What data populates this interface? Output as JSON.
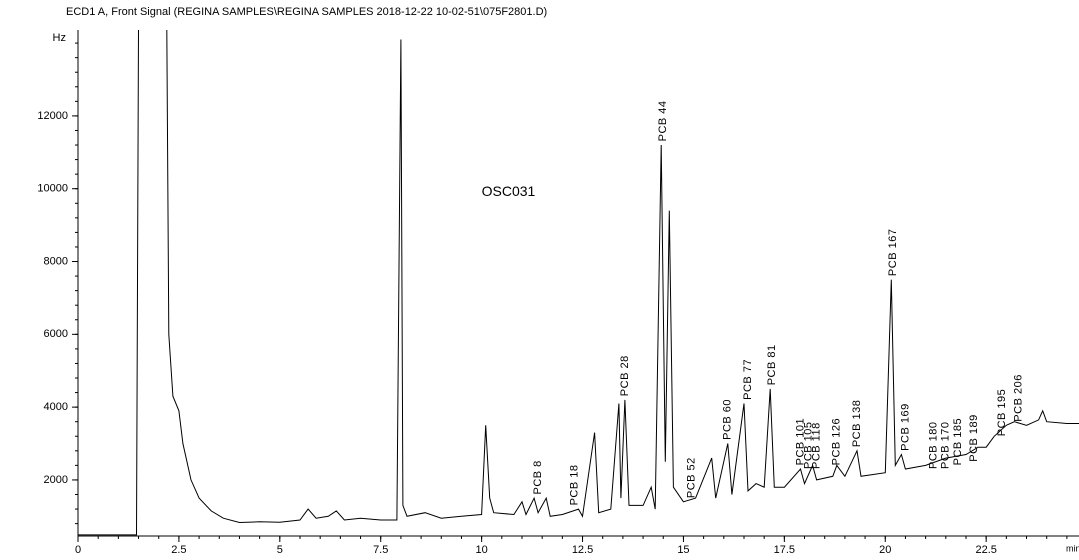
{
  "chart_data": {
    "type": "line",
    "title": "ECD1 A, Front Signal (REGINA SAMPLES\\REGINA SAMPLES 2018-12-22 10-02-51\\075F2801.D)",
    "ylabel": "Hz",
    "xlabel": "min",
    "color": "#000000",
    "xlim": [
      0,
      24.8
    ],
    "ylim": [
      460,
      14360
    ],
    "xticks": [
      0,
      2.5,
      5,
      7.5,
      10,
      12.5,
      15,
      17.5,
      20,
      22.5
    ],
    "yticks": [
      2000,
      4000,
      6000,
      8000,
      10000,
      12000
    ],
    "x": [
      0,
      1.45,
      1.5,
      2.2,
      2.25,
      2.35,
      2.5,
      2.6,
      2.8,
      3.0,
      3.3,
      3.6,
      4.0,
      4.5,
      5.0,
      5.5,
      5.7,
      5.9,
      6.2,
      6.4,
      6.6,
      7.0,
      7.5,
      7.9,
      8.0,
      8.05,
      8.15,
      8.6,
      9.0,
      9.5,
      10.0,
      10.1,
      10.2,
      10.3,
      10.8,
      11.0,
      11.1,
      11.3,
      11.4,
      11.6,
      11.7,
      12.0,
      12.4,
      12.5,
      12.8,
      12.9,
      13.2,
      13.4,
      13.45,
      13.55,
      13.65,
      14.0,
      14.2,
      14.3,
      14.45,
      14.55,
      14.65,
      14.75,
      15.0,
      15.3,
      15.7,
      15.8,
      16.1,
      16.2,
      16.5,
      16.6,
      16.8,
      17.0,
      17.15,
      17.25,
      17.5,
      17.9,
      18.0,
      18.2,
      18.3,
      18.7,
      18.8,
      19.0,
      19.3,
      19.4,
      20.0,
      20.15,
      20.25,
      20.4,
      20.5,
      21.0,
      21.5,
      22.0,
      22.3,
      22.5,
      22.7,
      23.0,
      23.2,
      23.5,
      23.8,
      23.9,
      24.0,
      24.5,
      24.8
    ],
    "values": [
      490,
      490,
      14400,
      14400,
      6000,
      4300,
      3900,
      3000,
      2000,
      1500,
      1150,
      950,
      830,
      850,
      840,
      900,
      1200,
      950,
      1000,
      1150,
      900,
      950,
      900,
      900,
      14100,
      1300,
      1000,
      1100,
      950,
      1000,
      1050,
      3500,
      1500,
      1100,
      1050,
      1400,
      1050,
      1500,
      1100,
      1500,
      1000,
      1050,
      1200,
      1000,
      3300,
      1100,
      1200,
      4100,
      1500,
      4200,
      1300,
      1300,
      1800,
      1200,
      11200,
      2500,
      9400,
      1800,
      1400,
      1500,
      2600,
      1500,
      3000,
      1600,
      4100,
      1700,
      1900,
      1800,
      4500,
      1800,
      1800,
      2300,
      1900,
      2400,
      2000,
      2100,
      2400,
      2100,
      2800,
      2100,
      2200,
      7500,
      2400,
      2700,
      2300,
      2400,
      2600,
      2700,
      2900,
      2900,
      3200,
      3500,
      3600,
      3500,
      3650,
      3900,
      3600,
      3550,
      3550
    ],
    "annotations": [
      {
        "text": "OSC031",
        "x": 10.0,
        "y": 9900
      },
      {
        "text": "PCB 8",
        "x": 11.4,
        "y": 1600,
        "rotate": true
      },
      {
        "text": "PCB 18",
        "x": 12.3,
        "y": 1300,
        "rotate": true
      },
      {
        "text": "PCB 28",
        "x": 13.55,
        "y": 4300,
        "rotate": true
      },
      {
        "text": "PCB 44",
        "x": 14.5,
        "y": 11300,
        "rotate": true
      },
      {
        "text": "PCB 52",
        "x": 15.2,
        "y": 1500,
        "rotate": true
      },
      {
        "text": "PCB 60",
        "x": 16.1,
        "y": 3100,
        "rotate": true
      },
      {
        "text": "PCB 77",
        "x": 16.6,
        "y": 4200,
        "rotate": true
      },
      {
        "text": "PCB 81",
        "x": 17.2,
        "y": 4600,
        "rotate": true
      },
      {
        "text": "PCB 101",
        "x": 17.9,
        "y": 2400,
        "rotate": true
      },
      {
        "text": "PCB 105",
        "x": 18.1,
        "y": 2300,
        "rotate": true
      },
      {
        "text": "PCB 118",
        "x": 18.3,
        "y": 2300,
        "rotate": true
      },
      {
        "text": "PCB 126",
        "x": 18.8,
        "y": 2400,
        "rotate": true
      },
      {
        "text": "PCB 138",
        "x": 19.3,
        "y": 2900,
        "rotate": true
      },
      {
        "text": "PCB 167",
        "x": 20.2,
        "y": 7600,
        "rotate": true
      },
      {
        "text": "PCB 169",
        "x": 20.5,
        "y": 2800,
        "rotate": true
      },
      {
        "text": "PCB 180",
        "x": 21.2,
        "y": 2300,
        "rotate": true
      },
      {
        "text": "PCB 170",
        "x": 21.5,
        "y": 2300,
        "rotate": true
      },
      {
        "text": "PCB 185",
        "x": 21.8,
        "y": 2400,
        "rotate": true
      },
      {
        "text": "PCB 189",
        "x": 22.2,
        "y": 2500,
        "rotate": true
      },
      {
        "text": "PCB 195",
        "x": 22.9,
        "y": 3200,
        "rotate": true
      },
      {
        "text": "PCB 206",
        "x": 23.3,
        "y": 3600,
        "rotate": true
      }
    ]
  }
}
